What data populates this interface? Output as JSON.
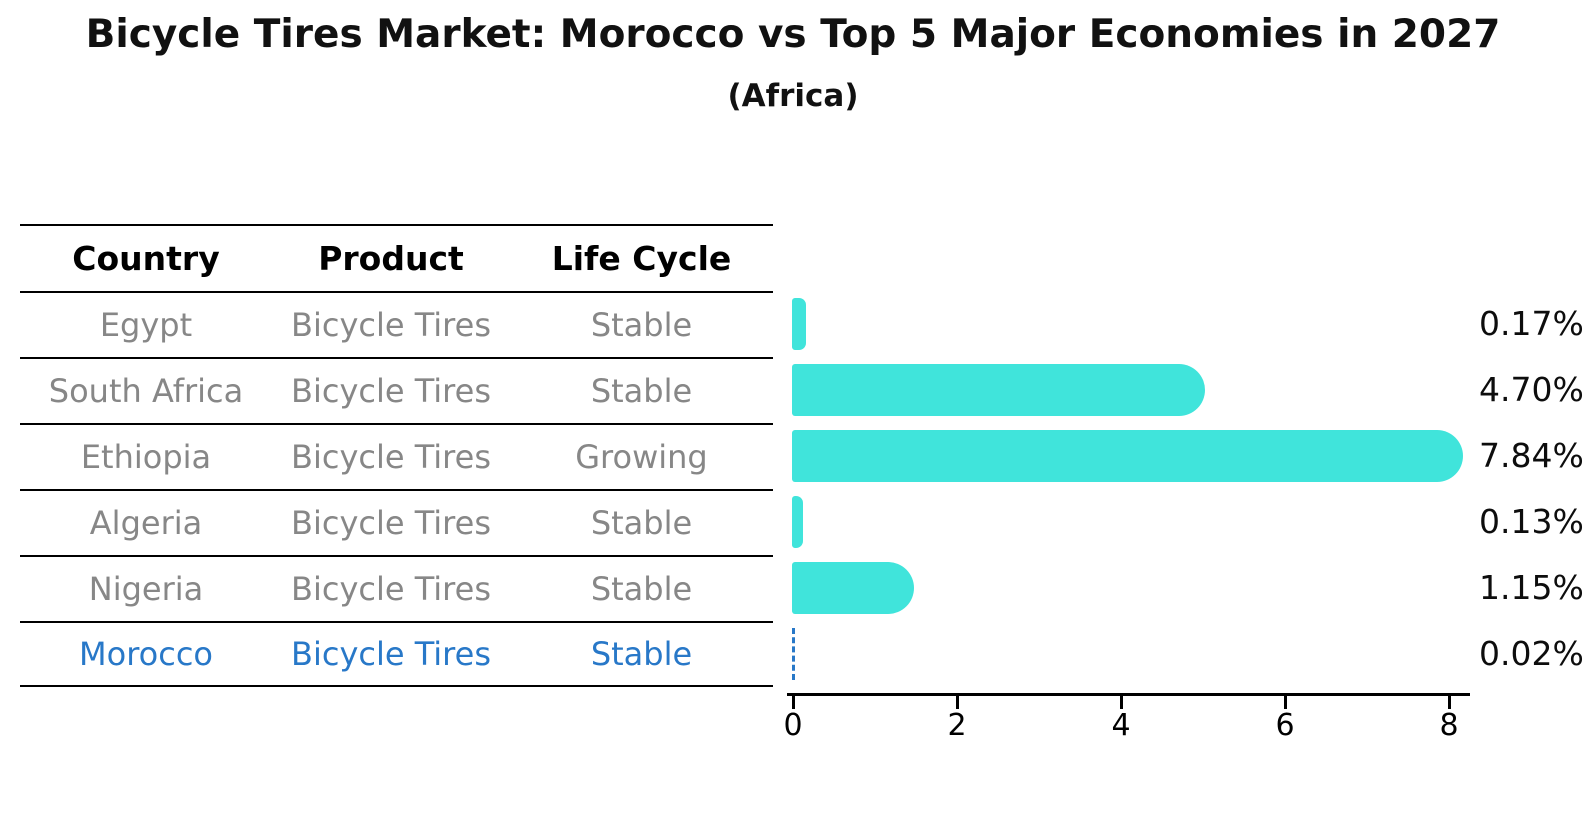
{
  "title": "Bicycle Tires Market: Morocco vs Top 5 Major Economies in 2027",
  "subtitle": "(Africa)",
  "table": {
    "headers": [
      "Country",
      "Product",
      "Life Cycle"
    ],
    "rows": [
      {
        "country": "Egypt",
        "product": "Bicycle Tires",
        "life_cycle": "Stable",
        "highlight": false
      },
      {
        "country": "South Africa",
        "product": "Bicycle Tires",
        "life_cycle": "Stable",
        "highlight": false
      },
      {
        "country": "Ethiopia",
        "product": "Bicycle Tires",
        "life_cycle": "Growing",
        "highlight": false
      },
      {
        "country": "Algeria",
        "product": "Bicycle Tires",
        "life_cycle": "Stable",
        "highlight": false
      },
      {
        "country": "Nigeria",
        "product": "Bicycle Tires",
        "life_cycle": "Stable",
        "highlight": false
      },
      {
        "country": "Morocco",
        "product": "Bicycle Tires",
        "life_cycle": "Stable",
        "highlight": true
      }
    ]
  },
  "chart_data": {
    "type": "bar",
    "orientation": "horizontal",
    "title": "Bicycle Tires Market: Morocco vs Top 5 Major Economies in 2027 (Africa)",
    "categories": [
      "Egypt",
      "South Africa",
      "Ethiopia",
      "Algeria",
      "Nigeria",
      "Morocco"
    ],
    "values": [
      0.17,
      4.7,
      7.84,
      0.13,
      1.15,
      0.02
    ],
    "value_labels": [
      "0.17%",
      "4.70%",
      "7.84%",
      "0.13%",
      "1.15%",
      "0.02%"
    ],
    "unit": "%",
    "x_ticks": [
      "0",
      "2",
      "4",
      "6",
      "8"
    ],
    "xlim": [
      0,
      8.3
    ],
    "grid": "off",
    "legend": "none",
    "bar_color": "#40E4DB",
    "highlight_color": "#2878C8",
    "text_color": "#111111",
    "muted_text_color": "#878787"
  }
}
